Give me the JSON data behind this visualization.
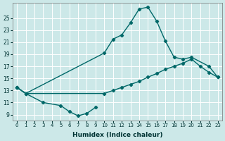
{
  "xlabel": "Humidex (Indice chaleur)",
  "bg_color": "#cce8e8",
  "grid_color": "#ffffff",
  "line_color": "#006868",
  "xlim": [
    -0.5,
    23.5
  ],
  "ylim": [
    8.0,
    27.5
  ],
  "xticks": [
    0,
    1,
    2,
    3,
    4,
    5,
    6,
    7,
    8,
    9,
    10,
    11,
    12,
    13,
    14,
    15,
    16,
    17,
    18,
    19,
    20,
    21,
    22,
    23
  ],
  "yticks": [
    9,
    11,
    13,
    15,
    17,
    19,
    21,
    23,
    25
  ],
  "series": [
    {
      "x": [
        0,
        1,
        3,
        5,
        6,
        7,
        8,
        9
      ],
      "y": [
        13.5,
        12.5,
        11.0,
        10.5,
        9.5,
        8.8,
        9.2,
        10.2
      ]
    },
    {
      "x": [
        0,
        1,
        10,
        11,
        12,
        13,
        14,
        15,
        16,
        17,
        18,
        19,
        20,
        22,
        23
      ],
      "y": [
        13.5,
        12.5,
        19.2,
        21.5,
        22.2,
        24.2,
        26.5,
        26.8,
        24.5,
        21.2,
        18.5,
        18.2,
        18.5,
        17.0,
        15.2
      ]
    },
    {
      "x": [
        0,
        1,
        10,
        11,
        12,
        13,
        14,
        15,
        16,
        17,
        18,
        19,
        20,
        21,
        22,
        23
      ],
      "y": [
        13.5,
        12.5,
        12.5,
        13.0,
        13.5,
        14.0,
        14.5,
        15.2,
        15.8,
        16.5,
        17.0,
        17.5,
        18.2,
        17.0,
        16.0,
        15.2
      ]
    }
  ]
}
